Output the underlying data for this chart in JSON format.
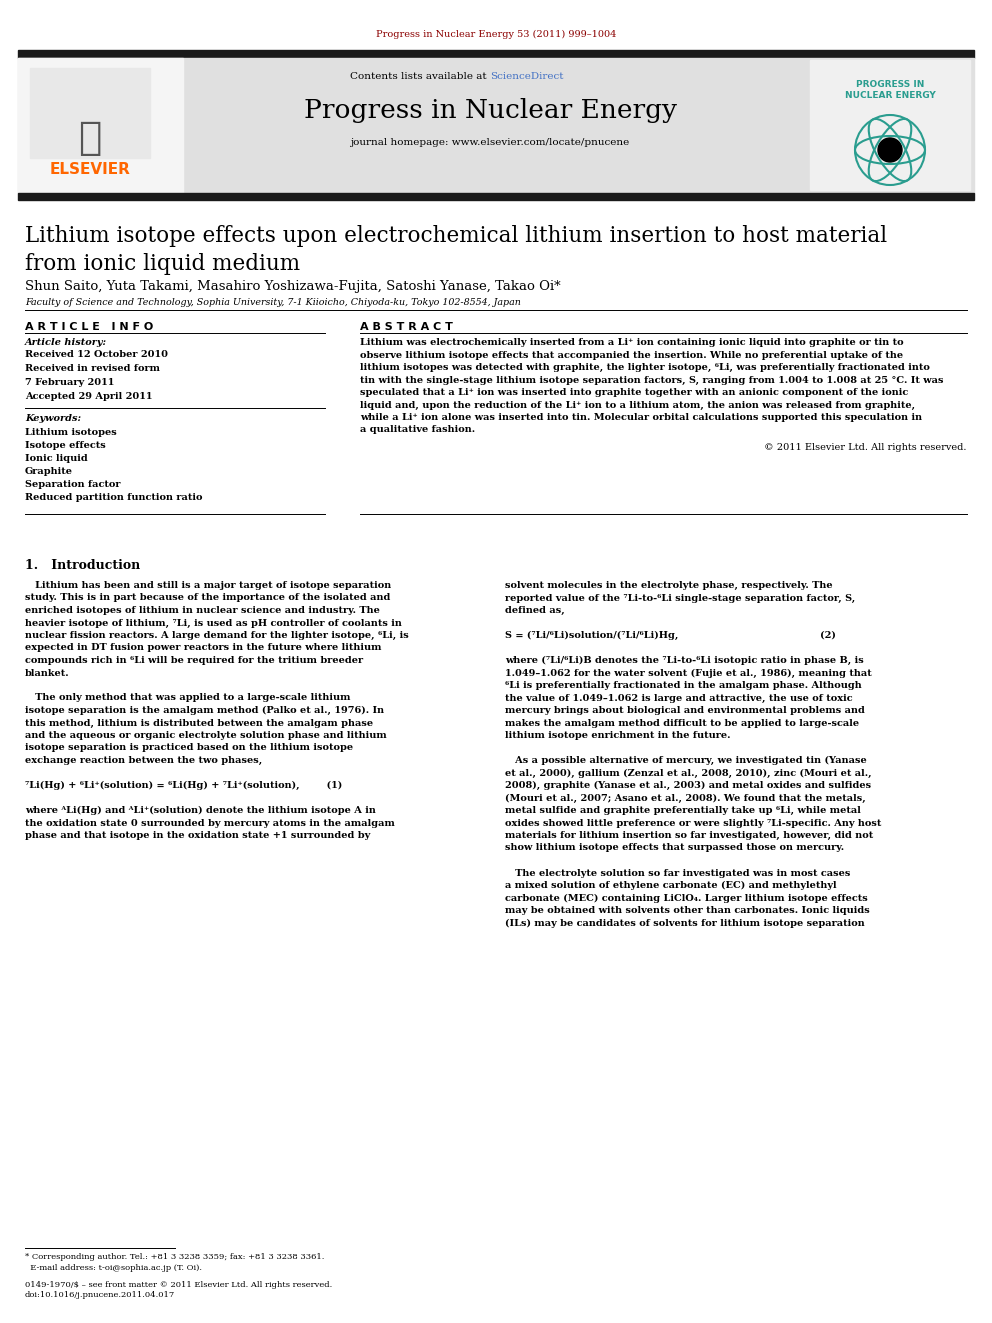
{
  "page_width": 9.92,
  "page_height": 13.23,
  "bg_color": "#ffffff",
  "journal_ref": "Progress in Nuclear Energy 53 (2011) 999–1004",
  "journal_ref_color": "#8B0000",
  "journal_name": "Progress in Nuclear Energy",
  "journal_url": "journal homepage: www.elsevier.com/locate/pnucene",
  "contents_text": "Contents lists available at ",
  "sciencedirect_text": "ScienceDirect",
  "sciencedirect_color": "#4472C4",
  "header_bg": "#e0e0e0",
  "header_bar_color": "#1a1a1a",
  "elsevier_color": "#FF6600",
  "paper_title_line1": "Lithium isotope effects upon electrochemical lithium insertion to host material",
  "paper_title_line2": "from ionic liquid medium",
  "authors": "Shun Saito, Yuta Takami, Masahiro Yoshizawa-Fujita, Satoshi Yanase, Takao Oi*",
  "affiliation": "Faculty of Science and Technology, Sophia University, 7-1 Kiioicho, Chiyoda-ku, Tokyo 102-8554, Japan",
  "article_info_title": "A R T I C L E   I N F O",
  "abstract_title": "A B S T R A C T",
  "article_history_label": "Article history:",
  "history_lines": [
    "Received 12 October 2010",
    "Received in revised form",
    "7 February 2011",
    "Accepted 29 April 2011"
  ],
  "keywords_label": "Keywords:",
  "keywords": [
    "Lithium isotopes",
    "Isotope effects",
    "Ionic liquid",
    "Graphite",
    "Separation factor",
    "Reduced partition function ratio"
  ],
  "abstract_lines": [
    "Lithium was electrochemically inserted from a Li⁺ ion containing ionic liquid into graphite or tin to",
    "observe lithium isotope effects that accompanied the insertion. While no preferential uptake of the",
    "lithium isotopes was detected with graphite, the lighter isotope, ⁶Li, was preferentially fractionated into",
    "tin with the single-stage lithium isotope separation factors, S, ranging from 1.004 to 1.008 at 25 °C. It was",
    "speculated that a Li⁺ ion was inserted into graphite together with an anionic component of the ionic",
    "liquid and, upon the reduction of the Li⁺ ion to a lithium atom, the anion was released from graphite,",
    "while a Li⁺ ion alone was inserted into tin. Molecular orbital calculations supported this speculation in",
    "a qualitative fashion."
  ],
  "copyright": "© 2011 Elsevier Ltd. All rights reserved.",
  "section1_title": "1.   Introduction",
  "left_col_lines": [
    "   Lithium has been and still is a major target of isotope separation",
    "study. This is in part because of the importance of the isolated and",
    "enriched isotopes of lithium in nuclear science and industry. The",
    "heavier isotope of lithium, ⁷Li, is used as pH controller of coolants in",
    "nuclear fission reactors. A large demand for the lighter isotope, ⁶Li, is",
    "expected in DT fusion power reactors in the future where lithium",
    "compounds rich in ⁶Li will be required for the tritium breeder",
    "blanket.",
    "",
    "   The only method that was applied to a large-scale lithium",
    "isotope separation is the amalgam method (Palko et al., 1976). In",
    "this method, lithium is distributed between the amalgam phase",
    "and the aqueous or organic electrolyte solution phase and lithium",
    "isotope separation is practiced based on the lithium isotope",
    "exchange reaction between the two phases,",
    "",
    "⁷Li(Hg) + ⁶Li⁺(solution) = ⁶Li(Hg) + ⁷Li⁺(solution),        (1)",
    "",
    "where ᴬLi(Hg) and ᴬLi⁺(solution) denote the lithium isotope A in",
    "the oxidation state 0 surrounded by mercury atoms in the amalgam",
    "phase and that isotope in the oxidation state +1 surrounded by"
  ],
  "right_col_lines": [
    "solvent molecules in the electrolyte phase, respectively. The",
    "reported value of the ⁷Li-to-⁶Li single-stage separation factor, S,",
    "defined as,",
    "",
    "S = (⁷Li/⁶Li)solution/(⁷Li/⁶Li)Hg,                                          (2)",
    "",
    "where (⁷Li/⁶Li)B denotes the ⁷Li-to-⁶Li isotopic ratio in phase B, is",
    "1.049–1.062 for the water solvent (Fujie et al., 1986), meaning that",
    "⁶Li is preferentially fractionated in the amalgam phase. Although",
    "the value of 1.049–1.062 is large and attractive, the use of toxic",
    "mercury brings about biological and environmental problems and",
    "makes the amalgam method difficult to be applied to large-scale",
    "lithium isotope enrichment in the future.",
    "",
    "   As a possible alternative of mercury, we investigated tin (Yanase",
    "et al., 2000), gallium (Zenzal et al., 2008, 2010), zinc (Mouri et al.,",
    "2008), graphite (Yanase et al., 2003) and metal oxides and sulfides",
    "(Mouri et al., 2007; Asano et al., 2008). We found that the metals,",
    "metal sulfide and graphite preferentially take up ⁶Li, while metal",
    "oxides showed little preference or were slightly ⁷Li-specific. Any host",
    "materials for lithium insertion so far investigated, however, did not",
    "show lithium isotope effects that surpassed those on mercury.",
    "",
    "   The electrolyte solution so far investigated was in most cases",
    "a mixed solution of ethylene carbonate (EC) and methylethyl",
    "carbonate (MEC) containing LiClO₄. Larger lithium isotope effects",
    "may be obtained with solvents other than carbonates. Ionic liquids",
    "(ILs) may be candidates of solvents for lithium isotope separation"
  ],
  "footnote_lines": [
    "* Corresponding author. Tel.: +81 3 3238 3359; fax: +81 3 3238 3361.",
    "  E-mail address: t-oi@sophia.ac.jp (T. Oi)."
  ],
  "bottom_lines": [
    "0149-1970/$ – see front matter © 2011 Elsevier Ltd. All rights reserved.",
    "doi:10.1016/j.pnucene.2011.04.017"
  ]
}
